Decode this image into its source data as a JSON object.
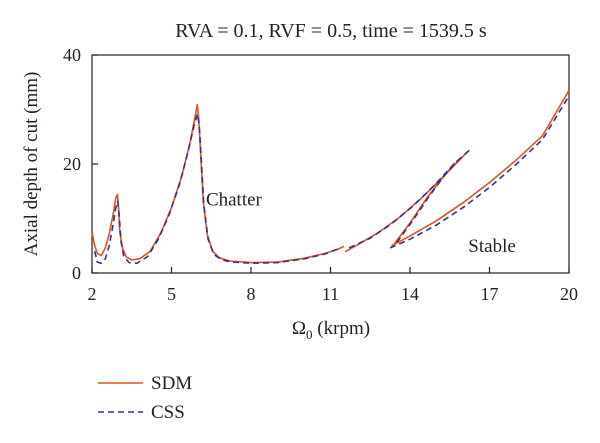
{
  "chart_data": {
    "type": "line",
    "title": "RVA = 0.1, RVF = 0.5, time = 1539.5 s",
    "xlabel": "Ω",
    "xlabel_sub": "0",
    "xlabel_unit": "(krpm)",
    "ylabel": "Axial depth of cut (mm)",
    "xlim": [
      2,
      20
    ],
    "ylim": [
      0,
      40
    ],
    "x_ticks": [
      2,
      5,
      8,
      11,
      14,
      17,
      20
    ],
    "x_tick_labels": [
      "2",
      "5",
      "8",
      "11",
      "14",
      "17",
      "20"
    ],
    "y_ticks": [
      0,
      20,
      40
    ],
    "y_tick_labels": [
      "0",
      "20",
      "40"
    ],
    "grid": false,
    "legend_position": "bottom-left",
    "annotations": [
      {
        "text": "Chatter",
        "x": 6.3,
        "y": 13.5
      },
      {
        "text": "Stable",
        "x": 16.2,
        "y": 5.0
      }
    ],
    "series": [
      {
        "name": "SDM",
        "color": "#e8501e",
        "style": "solid",
        "segments": [
          {
            "points": [
              [
                2.0,
                7.4
              ],
              [
                2.1,
                5.0
              ],
              [
                2.2,
                3.6
              ],
              [
                2.35,
                3.2
              ],
              [
                2.5,
                4.6
              ],
              [
                2.65,
                7.2
              ],
              [
                2.8,
                10.8
              ],
              [
                2.9,
                13.8
              ],
              [
                2.96,
                14.4
              ],
              [
                3.0,
                12.0
              ],
              [
                3.05,
                7.5
              ],
              [
                3.15,
                4.5
              ],
              [
                3.3,
                2.9
              ],
              [
                3.5,
                2.4
              ],
              [
                3.8,
                2.6
              ],
              [
                4.2,
                4.0
              ],
              [
                4.6,
                7.4
              ],
              [
                5.0,
                12.0
              ],
              [
                5.4,
                18.0
              ],
              [
                5.7,
                24.0
              ],
              [
                5.9,
                29.0
              ],
              [
                5.97,
                30.9
              ],
              [
                6.03,
                28.0
              ],
              [
                6.1,
                22.0
              ],
              [
                6.2,
                13.0
              ],
              [
                6.35,
                7.0
              ],
              [
                6.55,
                4.0
              ],
              [
                6.8,
                2.8
              ],
              [
                7.2,
                2.2
              ],
              [
                8.0,
                1.9
              ],
              [
                9.0,
                2.0
              ],
              [
                10.0,
                2.7
              ],
              [
                10.8,
                3.6
              ],
              [
                11.3,
                4.4
              ],
              [
                11.5,
                4.9
              ]
            ]
          },
          {
            "points": [
              [
                11.55,
                3.9
              ],
              [
                12.0,
                5.1
              ],
              [
                12.8,
                7.4
              ],
              [
                13.6,
                10.2
              ],
              [
                14.4,
                13.6
              ],
              [
                15.2,
                17.4
              ],
              [
                16.0,
                21.4
              ],
              [
                16.15,
                22.2
              ]
            ]
          },
          {
            "points": [
              [
                13.4,
                5.3
              ],
              [
                14.0,
                9.2
              ],
              [
                14.6,
                13.5
              ],
              [
                15.2,
                17.3
              ],
              [
                15.7,
                20.2
              ]
            ]
          },
          {
            "points": [
              [
                13.3,
                5.0
              ],
              [
                14.0,
                6.8
              ],
              [
                15.0,
                9.6
              ],
              [
                16.0,
                12.9
              ],
              [
                17.0,
                16.6
              ],
              [
                18.0,
                20.7
              ],
              [
                19.0,
                25.2
              ],
              [
                20.0,
                33.5
              ]
            ]
          }
        ]
      },
      {
        "name": "CSS",
        "color": "#2e3192",
        "style": "dashed",
        "segments": [
          {
            "points": [
              [
                2.1,
                4.0
              ],
              [
                2.2,
                2.0
              ],
              [
                2.35,
                1.8
              ],
              [
                2.5,
                2.6
              ],
              [
                2.65,
                5.0
              ],
              [
                2.8,
                9.0
              ],
              [
                2.9,
                12.0
              ],
              [
                2.97,
                13.2
              ],
              [
                3.02,
                11.0
              ],
              [
                3.1,
                5.6
              ],
              [
                3.2,
                3.0
              ],
              [
                3.4,
                1.9
              ],
              [
                3.7,
                1.8
              ],
              [
                4.1,
                3.0
              ],
              [
                4.5,
                6.2
              ],
              [
                4.9,
                10.6
              ],
              [
                5.3,
                16.2
              ],
              [
                5.6,
                21.8
              ],
              [
                5.85,
                27.0
              ],
              [
                5.98,
                29.2
              ],
              [
                6.05,
                27.0
              ],
              [
                6.12,
                21.0
              ],
              [
                6.22,
                12.5
              ],
              [
                6.38,
                6.2
              ],
              [
                6.6,
                3.4
              ],
              [
                6.9,
                2.4
              ],
              [
                7.3,
                2.0
              ],
              [
                8.0,
                1.8
              ],
              [
                9.0,
                1.9
              ],
              [
                10.0,
                2.6
              ],
              [
                10.8,
                3.5
              ],
              [
                11.4,
                4.6
              ]
            ]
          },
          {
            "points": [
              [
                11.7,
                4.6
              ],
              [
                12.5,
                6.4
              ],
              [
                13.3,
                9.0
              ],
              [
                14.1,
                12.2
              ],
              [
                14.9,
                16.0
              ],
              [
                15.7,
                20.2
              ],
              [
                16.35,
                23.0
              ]
            ]
          },
          {
            "points": [
              [
                13.5,
                5.6
              ],
              [
                14.1,
                9.6
              ],
              [
                14.7,
                13.9
              ],
              [
                15.3,
                17.9
              ],
              [
                15.8,
                20.6
              ]
            ]
          },
          {
            "points": [
              [
                13.25,
                4.6
              ],
              [
                14.0,
                6.2
              ],
              [
                15.0,
                8.8
              ],
              [
                16.0,
                12.0
              ],
              [
                17.0,
                15.7
              ],
              [
                18.0,
                19.9
              ],
              [
                19.0,
                24.5
              ],
              [
                20.0,
                32.5
              ]
            ]
          }
        ]
      }
    ]
  }
}
